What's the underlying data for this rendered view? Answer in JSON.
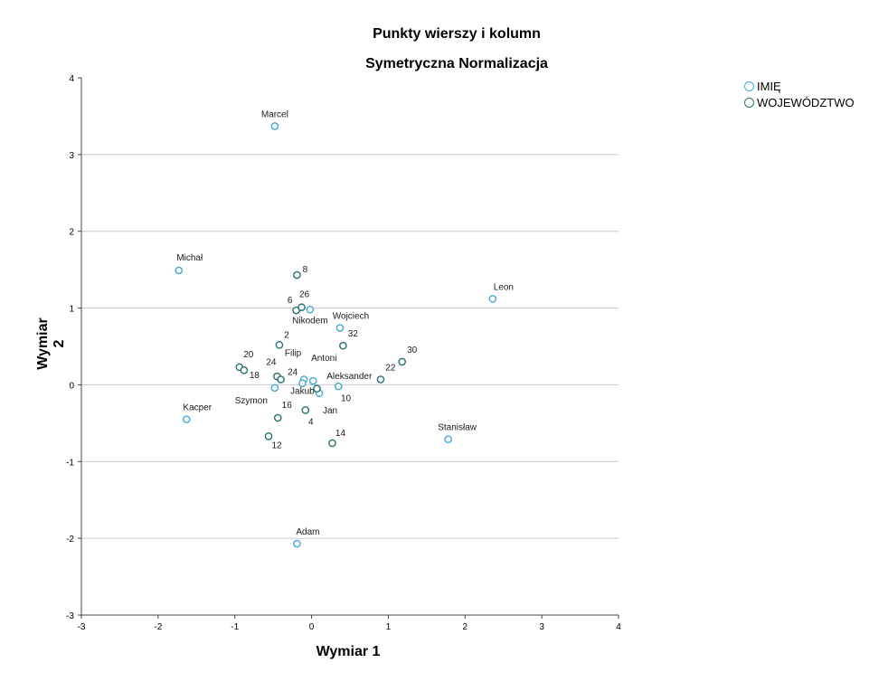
{
  "chart_data": {
    "type": "scatter",
    "title": "Punkty wierszy i kolumn",
    "subtitle": "Symetryczna Normalizacja",
    "xlabel": "Wymiar 1",
    "ylabel": "Wymiar 2",
    "xlim": [
      -3,
      4
    ],
    "ylim": [
      -3,
      4
    ],
    "x_ticks": [
      "-3",
      "-2",
      "-1",
      "0",
      "1",
      "2",
      "3",
      "4"
    ],
    "y_ticks": [
      "-3",
      "-2",
      "-1",
      "0",
      "1",
      "2",
      "3",
      "4"
    ],
    "grid": "horizontal",
    "legend_position": "top-right",
    "series": [
      {
        "name": "IMIĘ",
        "color": "#3fa9d6",
        "points": [
          {
            "label": "Marcel",
            "x": -0.48,
            "y": 3.37
          },
          {
            "label": "Michał",
            "x": -1.73,
            "y": 1.49
          },
          {
            "label": "Leon",
            "x": 2.36,
            "y": 1.12
          },
          {
            "label": "Wojciech",
            "x": 0.37,
            "y": 0.74
          },
          {
            "label": "Nikodem",
            "x": -0.02,
            "y": 0.98
          },
          {
            "label": "Filip",
            "x": -0.1,
            "y": 0.07
          },
          {
            "label": "Antoni",
            "x": 0.02,
            "y": 0.05
          },
          {
            "label": "Aleksander",
            "x": 0.35,
            "y": -0.02
          },
          {
            "label": "Jakub",
            "x": -0.12,
            "y": 0.02
          },
          {
            "label": "Jan",
            "x": 0.1,
            "y": -0.11
          },
          {
            "label": "Szymon",
            "x": -0.48,
            "y": -0.04
          },
          {
            "label": "Kacper",
            "x": -1.63,
            "y": -0.45
          },
          {
            "label": "Stanisław",
            "x": 1.78,
            "y": -0.71
          },
          {
            "label": "Adam",
            "x": -0.19,
            "y": -2.07
          }
        ]
      },
      {
        "name": "WOJEWÓDZTWO",
        "color": "#2a6f6f",
        "points": [
          {
            "label": "8",
            "x": -0.19,
            "y": 1.43
          },
          {
            "label": "6",
            "x": -0.2,
            "y": 0.97
          },
          {
            "label": "26",
            "x": -0.13,
            "y": 1.01
          },
          {
            "label": "2",
            "x": -0.42,
            "y": 0.52
          },
          {
            "label": "32",
            "x": 0.41,
            "y": 0.51
          },
          {
            "label": "30",
            "x": 1.18,
            "y": 0.3
          },
          {
            "label": "22",
            "x": 0.9,
            "y": 0.07
          },
          {
            "label": "20",
            "x": -0.94,
            "y": 0.23
          },
          {
            "label": "24",
            "x": -0.88,
            "y": 0.19
          },
          {
            "label": "18",
            "x": -0.45,
            "y": 0.11
          },
          {
            "label": "24",
            "x": -0.4,
            "y": 0.07
          },
          {
            "label": "10",
            "x": 0.07,
            "y": -0.05
          },
          {
            "label": "16",
            "x": -0.44,
            "y": -0.43
          },
          {
            "label": "4",
            "x": -0.08,
            "y": -0.33
          },
          {
            "label": "12",
            "x": -0.56,
            "y": -0.67
          },
          {
            "label": "14",
            "x": 0.27,
            "y": -0.76
          }
        ]
      }
    ]
  }
}
